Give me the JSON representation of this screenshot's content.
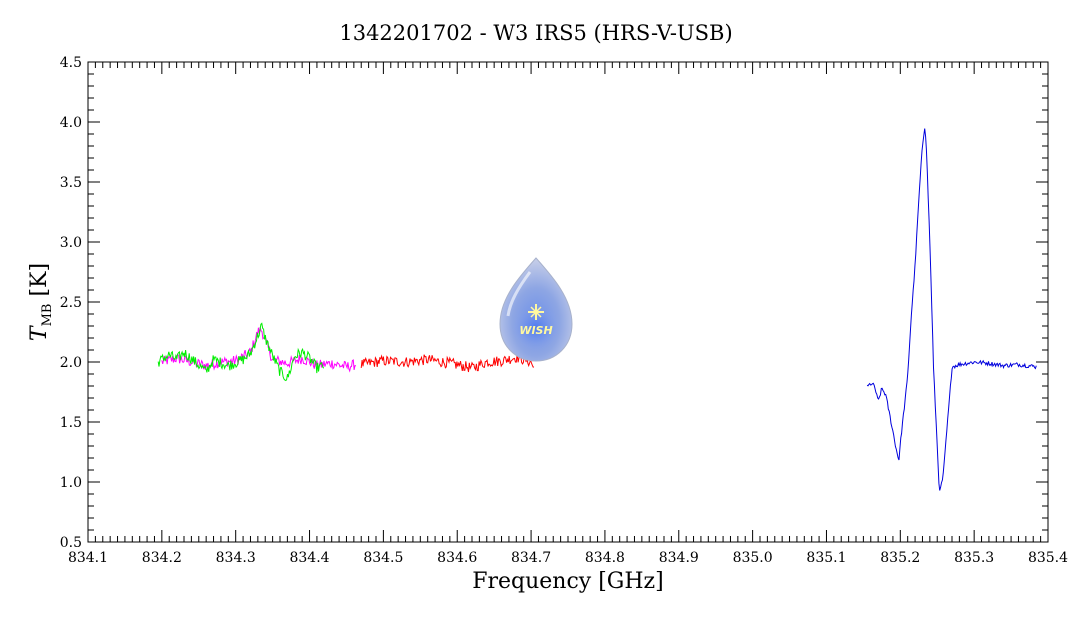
{
  "chart_data": {
    "type": "line",
    "title": "1342201702 - W3 IRS5 (HRS-V-USB)",
    "xlabel": "Frequency [GHz]",
    "ylabel_main": "T",
    "ylabel_sub": "MB",
    "ylabel_unit": " [K]",
    "xlim": [
      834.1,
      835.4
    ],
    "ylim": [
      0.5,
      4.5
    ],
    "x_ticks": [
      834.1,
      834.2,
      834.3,
      834.4,
      834.5,
      834.6,
      834.7,
      834.8,
      834.9,
      835.0,
      835.1,
      835.2,
      835.3,
      835.4
    ],
    "x_tick_labels": [
      "834.1",
      "834.2",
      "834.3",
      "834.4",
      "834.5",
      "834.6",
      "834.7",
      "834.8",
      "834.9",
      "835.0",
      "835.1",
      "835.2",
      "835.3",
      "835.4"
    ],
    "y_ticks": [
      0.5,
      1.0,
      1.5,
      2.0,
      2.5,
      3.0,
      3.5,
      4.0,
      4.5
    ],
    "y_tick_labels": [
      "0.5",
      "1.0",
      "1.5",
      "2.0",
      "2.5",
      "3.0",
      "3.5",
      "4.0",
      "4.5"
    ],
    "grid": false,
    "logo": {
      "text": "WISH",
      "icon": "wish-droplet-logo"
    },
    "series": [
      {
        "color": "#ff00ff",
        "x": [
          834.2,
          834.22,
          834.24,
          834.26,
          834.28,
          834.3,
          834.32,
          834.33,
          834.335,
          834.34,
          834.35,
          834.37,
          834.39,
          834.41,
          834.43,
          834.45,
          834.463
        ],
        "y": [
          2.0,
          2.03,
          2.0,
          1.97,
          2.0,
          2.01,
          2.08,
          2.25,
          2.27,
          2.18,
          2.02,
          1.99,
          2.03,
          1.97,
          1.99,
          1.96,
          1.98
        ]
      },
      {
        "color": "#ff0000",
        "x": [
          834.47,
          834.5,
          834.53,
          834.56,
          834.59,
          834.62,
          834.64,
          834.66,
          834.68,
          834.7,
          834.705
        ],
        "y": [
          1.98,
          2.01,
          2.0,
          2.02,
          1.99,
          1.95,
          2.0,
          2.01,
          2.04,
          2.0,
          1.93
        ]
      },
      {
        "color": "#00ee00",
        "x": [
          834.195,
          834.21,
          834.22,
          834.23,
          834.245,
          834.26,
          834.27,
          834.29,
          834.31,
          834.32,
          834.33,
          834.335,
          834.34,
          834.35,
          834.36,
          834.37,
          834.38,
          834.39,
          834.4,
          834.41,
          834.42
        ],
        "y": [
          2.0,
          2.06,
          2.02,
          2.08,
          2.0,
          1.92,
          2.02,
          1.97,
          2.02,
          2.07,
          2.22,
          2.3,
          2.2,
          2.05,
          1.92,
          1.86,
          2.05,
          2.08,
          2.03,
          1.95,
          1.97
        ]
      },
      {
        "color": "#0000dd",
        "x": [
          835.155,
          835.16,
          835.165,
          835.17,
          835.175,
          835.18,
          835.185,
          835.19,
          835.195,
          835.198,
          835.2,
          835.205,
          835.21,
          835.215,
          835.22,
          835.225,
          835.23,
          835.233,
          835.235,
          835.24,
          835.245,
          835.25,
          835.253,
          835.258,
          835.262,
          835.266,
          835.27,
          835.28,
          835.3,
          835.32,
          835.34,
          835.36,
          835.385
        ],
        "y": [
          1.79,
          1.82,
          1.8,
          1.67,
          1.78,
          1.73,
          1.58,
          1.42,
          1.26,
          1.18,
          1.32,
          1.6,
          1.88,
          2.4,
          2.8,
          3.35,
          3.8,
          3.96,
          3.85,
          3.0,
          1.95,
          1.3,
          0.9,
          1.05,
          1.35,
          1.65,
          1.96,
          1.98,
          2.0,
          1.99,
          1.97,
          1.98,
          1.96
        ]
      }
    ]
  }
}
